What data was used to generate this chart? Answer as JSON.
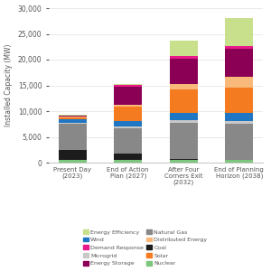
{
  "categories": [
    "Present Day\n(2023)",
    "End of Action\nPlan (2027)",
    "After Four\nCorners Exit\n(2032)",
    "End of Planning\nHorizon (2038)"
  ],
  "segments": {
    "Nuclear": [
      500,
      500,
      500,
      500
    ],
    "Coal": [
      2000,
      1200,
      200,
      0
    ],
    "Natural Gas": [
      5000,
      5000,
      7000,
      7000
    ],
    "Microgrid": [
      200,
      300,
      500,
      600
    ],
    "Wind": [
      800,
      1000,
      1500,
      1500
    ],
    "Solar": [
      300,
      2800,
      4500,
      5000
    ],
    "Distributed Energy": [
      200,
      500,
      1000,
      2000
    ],
    "Energy Storage": [
      100,
      3500,
      5000,
      5500
    ],
    "Demand Response": [
      100,
      300,
      500,
      500
    ],
    "Energy Efficiency": [
      100,
      200,
      3000,
      5500
    ]
  },
  "colors": {
    "Nuclear": "#7dc67e",
    "Coal": "#1c1c1c",
    "Natural Gas": "#888888",
    "Microgrid": "#c8c8c8",
    "Wind": "#1f77c4",
    "Solar": "#f47b20",
    "Distributed Energy": "#f9b97a",
    "Energy Storage": "#8b0055",
    "Demand Response": "#e8198b",
    "Energy Efficiency": "#c8e08c"
  },
  "order": [
    "Nuclear",
    "Coal",
    "Natural Gas",
    "Microgrid",
    "Wind",
    "Solar",
    "Distributed Energy",
    "Energy Storage",
    "Demand Response",
    "Energy Efficiency"
  ],
  "ylabel": "Installed Capacity (MW)",
  "ylim": [
    0,
    30000
  ],
  "yticks": [
    0,
    5000,
    10000,
    15000,
    20000,
    25000,
    30000
  ],
  "legend_order_col1": [
    "Energy Efficiency",
    "Demand Response",
    "Energy Storage",
    "Distributed Energy",
    "Solar"
  ],
  "legend_order_col2": [
    "Wind",
    "Microgrid",
    "Natural Gas",
    "Coal",
    "Nuclear"
  ],
  "background_color": "#ffffff"
}
